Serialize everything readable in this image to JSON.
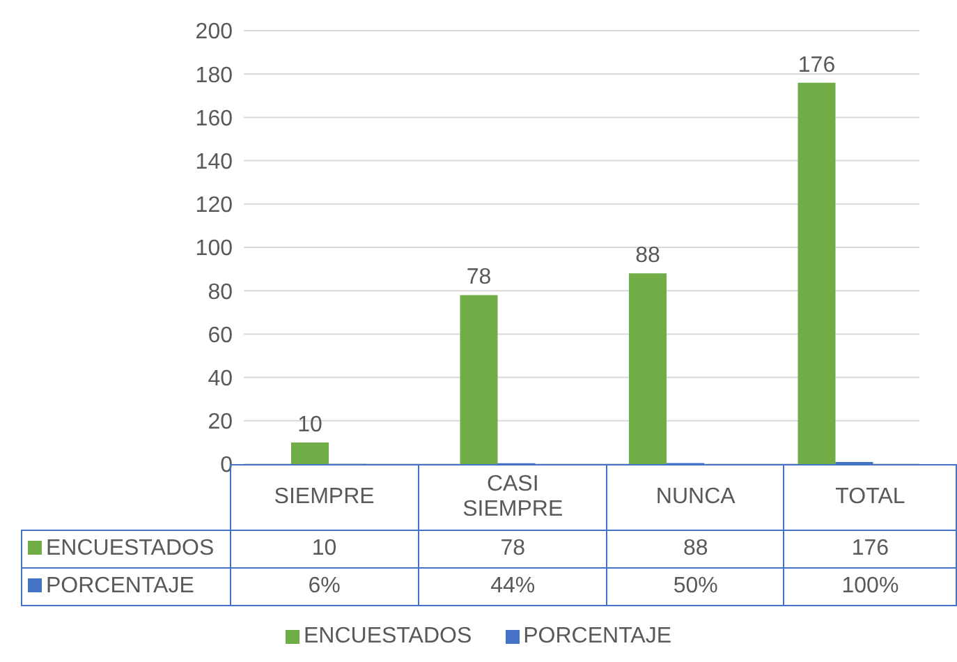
{
  "chart_data": {
    "type": "bar",
    "categories": [
      "SIEMPRE",
      "CASI SIEMPRE",
      "NUNCA",
      "TOTAL"
    ],
    "series": [
      {
        "name": "ENCUESTADOS",
        "color": "#70ad47",
        "values": [
          10,
          78,
          88,
          176
        ],
        "value_labels": [
          "10",
          "78",
          "88",
          "176"
        ]
      },
      {
        "name": "PORCENTAJE",
        "color": "#4472c4",
        "values": [
          0.06,
          0.44,
          0.5,
          1
        ],
        "value_labels": [
          "6%",
          "44%",
          "50%",
          "100%"
        ]
      }
    ],
    "ylim": [
      0,
      200
    ],
    "yticks": [
      0,
      20,
      40,
      60,
      80,
      100,
      120,
      140,
      160,
      180,
      200
    ],
    "grid": "y",
    "legend": "bottom",
    "data_labels": true
  }
}
